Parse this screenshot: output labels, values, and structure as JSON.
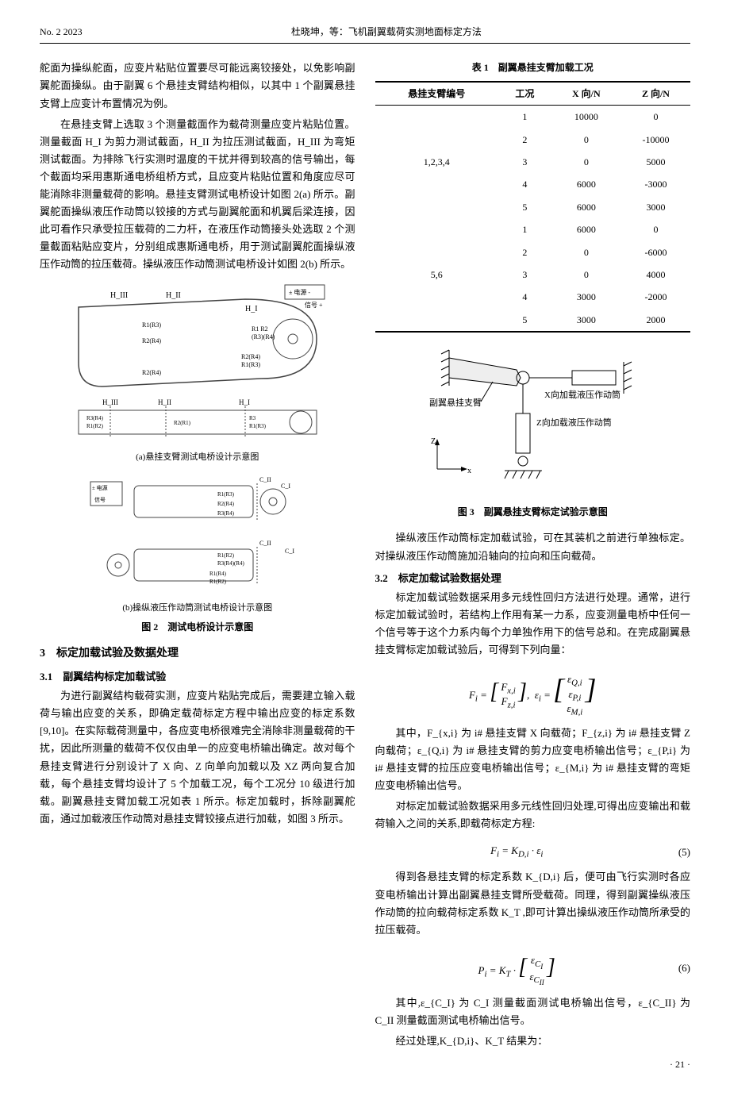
{
  "header": {
    "left": "No. 2 2023",
    "center": "杜晓坤，等：飞机副翼载荷实测地面标定方法"
  },
  "col_left": {
    "intro_para": "舵面为操纵舵面，应变片粘贴位置要尽可能远离铰接处，以免影响副翼舵面操纵。由于副翼 6 个悬挂支臂结构相似，以其中 1 个副翼悬挂支臂上应变计布置情况为例。",
    "para2": "在悬挂支臂上选取 3 个测量截面作为载荷测量应变片粘贴位置。测量截面 H_I 为剪力测试截面，H_II 为拉压测试截面，H_III 为弯矩测试截面。为排除飞行实测时温度的干扰并得到较高的信号输出，每个截面均采用惠斯通电桥组桥方式，且应变片粘贴位置和角度应尽可能消除非测量载荷的影响。悬挂支臂测试电桥设计如图 2(a) 所示。副翼舵面操纵液压作动筒以铰接的方式与副翼舵面和机翼后梁连接，因此可看作只承受拉压载荷的二力杆，在液压作动筒接头处选取 2 个测量截面粘贴应变片，分别组成惠斯通电桥，用于测试副翼舵面操纵液压作动筒的拉压载荷。操纵液压作动筒测试电桥设计如图 2(b) 所示。",
    "fig2a_caption": "(a)悬挂支臂测试电桥设计示意图",
    "fig2b_caption": "(b)操纵液压作动筒测试电桥设计示意图",
    "fig2_caption": "图 2　测试电桥设计示意图",
    "sec3_title": "3　标定加载试验及数据处理",
    "sec31_title": "3.1　副翼结构标定加载试验",
    "sec31_para": "为进行副翼结构载荷实测，应变片粘贴完成后，需要建立输入载荷与输出应变的关系，即确定载荷标定方程中输出应变的标定系数[9,10]。在实际载荷测量中，各应变电桥很难完全消除非测量载荷的干扰，因此所测量的载荷不仅仅由单一的应变电桥输出确定。故对每个悬挂支臂进行分别设计了 X 向、Z 向单向加载以及 XZ 两向复合加载，每个悬挂支臂均设计了 5 个加载工况，每个工况分 10 级进行加载。副翼悬挂支臂加载工况如表 1 所示。标定加载时，拆除副翼舵面，通过加载液压作动筒对悬挂支臂铰接点进行加载，如图 3 所示。"
  },
  "col_right": {
    "table1_title": "表 1　副翼悬挂支臂加载工况",
    "table1": {
      "headers": [
        "悬挂支臂编号",
        "工况",
        "X 向/N",
        "Z 向/N"
      ],
      "groups": [
        {
          "label": "1,2,3,4",
          "rows": [
            [
              "1",
              "10000",
              "0"
            ],
            [
              "2",
              "0",
              "-10000"
            ],
            [
              "3",
              "0",
              "5000"
            ],
            [
              "4",
              "6000",
              "-3000"
            ],
            [
              "5",
              "6000",
              "3000"
            ]
          ]
        },
        {
          "label": "5,6",
          "rows": [
            [
              "1",
              "6000",
              "0"
            ],
            [
              "2",
              "0",
              "-6000"
            ],
            [
              "3",
              "0",
              "4000"
            ],
            [
              "4",
              "3000",
              "-2000"
            ],
            [
              "5",
              "3000",
              "2000"
            ]
          ]
        }
      ]
    },
    "fig3_labels": {
      "arm": "副翼悬挂支臂",
      "x_cyl": "X向加载液压作动筒",
      "z_cyl": "Z向加载液压作动筒",
      "z_axis": "Z",
      "x_axis": "x"
    },
    "fig3_caption": "图 3　副翼悬挂支臂标定试验示意图",
    "para_after_fig3": "操纵液压作动筒标定加载试验，可在其装机之前进行单独标定。对操纵液压作动筒施加沿轴向的拉向和压向载荷。",
    "sec32_title": "3.2　标定加载试验数据处理",
    "sec32_para1": "标定加载试验数据采用多元线性回归方法进行处理。通常，进行标定加载试验时，若结构上作用有某一力系，应变测量电桥中任何一个信号等于这个力系内每个力单独作用下的信号总和。在完成副翼悬挂支臂标定加载试验后，可得到下列向量：",
    "eq_vector": "F_i = [F_{x,i}; F_{z,i}],  ε_i = [ε_{Q,i}; ε_{P,i}; ε_{M,i}]",
    "sec32_para2": "其中，F_{x,i} 为 i# 悬挂支臂 X 向载荷；F_{z,i} 为 i# 悬挂支臂 Z 向载荷；ε_{Q,i} 为 i# 悬挂支臂的剪力应变电桥输出信号；ε_{P,i} 为 i# 悬挂支臂的拉压应变电桥输出信号；ε_{M,i} 为 i# 悬挂支臂的弯矩应变电桥输出信号。",
    "sec32_para3": "对标定加载试验数据采用多元线性回归处理,可得出应变输出和载荷输入之间的关系,即载荷标定方程:",
    "eq5": "F_i = K_{D,i} · ε_i",
    "eq5_num": "(5)",
    "sec32_para4": "得到各悬挂支臂的标定系数 K_{D,i} 后，便可由飞行实测时各应变电桥输出计算出副翼悬挂支臂所受载荷。同理，得到副翼操纵液压作动筒的拉向载荷标定系数 K_T ,即可计算出操纵液压作动筒所承受的拉压载荷。",
    "eq6": "P_i = K_T · [ε_{C_I}; ε_{C_II}]",
    "eq6_num": "(6)",
    "sec32_para5": "其中,ε_{C_I} 为 C_I 测量截面测试电桥输出信号，ε_{C_II} 为 C_II 测量截面测试电桥输出信号。",
    "sec32_para6": "经过处理,K_{D,i}、K_T 结果为：",
    "page_num": "· 21 ·"
  }
}
